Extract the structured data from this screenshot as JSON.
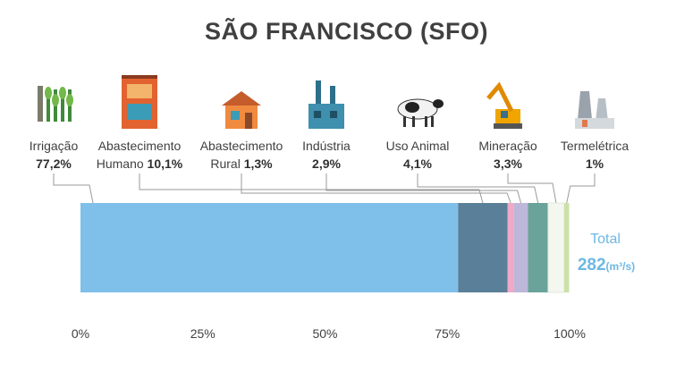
{
  "chart_data": {
    "type": "bar",
    "orientation": "horizontal-stacked",
    "title": "SÃO FRANCISCO (SFO)",
    "xlim": [
      0,
      100
    ],
    "x_ticks": [
      "0%",
      "25%",
      "50%",
      "75%",
      "100%"
    ],
    "grid": false,
    "categories": [
      {
        "name_lines": [
          "Irrigação"
        ],
        "pct_prefix": "",
        "pct_label": "77,2%",
        "value": 77.2,
        "color": "#7fc0ea",
        "icon": "irrigation-crop-icon"
      },
      {
        "name_lines": [
          "Abastecimento"
        ],
        "pct_prefix": "Humano ",
        "pct_label": "10,1%",
        "value": 10.1,
        "color": "#5a7f98",
        "icon": "urban-building-icon"
      },
      {
        "name_lines": [
          "Abastecimento"
        ],
        "pct_prefix": "Rural ",
        "pct_label": "1,3%",
        "value": 1.3,
        "color": "#f0a9c6",
        "icon": "rural-house-icon"
      },
      {
        "name_lines": [
          "Indústria"
        ],
        "pct_prefix": "",
        "pct_label": "2,9%",
        "value": 2.9,
        "color": "#bdb7d9",
        "icon": "factory-icon"
      },
      {
        "name_lines": [
          "Uso Animal"
        ],
        "pct_prefix": "",
        "pct_label": "4,1%",
        "value": 4.1,
        "color": "#6aa39a",
        "icon": "cow-icon"
      },
      {
        "name_lines": [
          "Mineração"
        ],
        "pct_prefix": "",
        "pct_label": "3,3%",
        "value": 3.3,
        "color": "#f4f7ef",
        "icon": "excavator-icon"
      },
      {
        "name_lines": [
          "Termelétrica"
        ],
        "pct_prefix": "",
        "pct_label": "1%",
        "value": 1.0,
        "color": "#cbe1a8",
        "icon": "power-plant-icon"
      }
    ],
    "total": {
      "label": "Total",
      "value": "282",
      "unit": "(m³/s)"
    }
  }
}
